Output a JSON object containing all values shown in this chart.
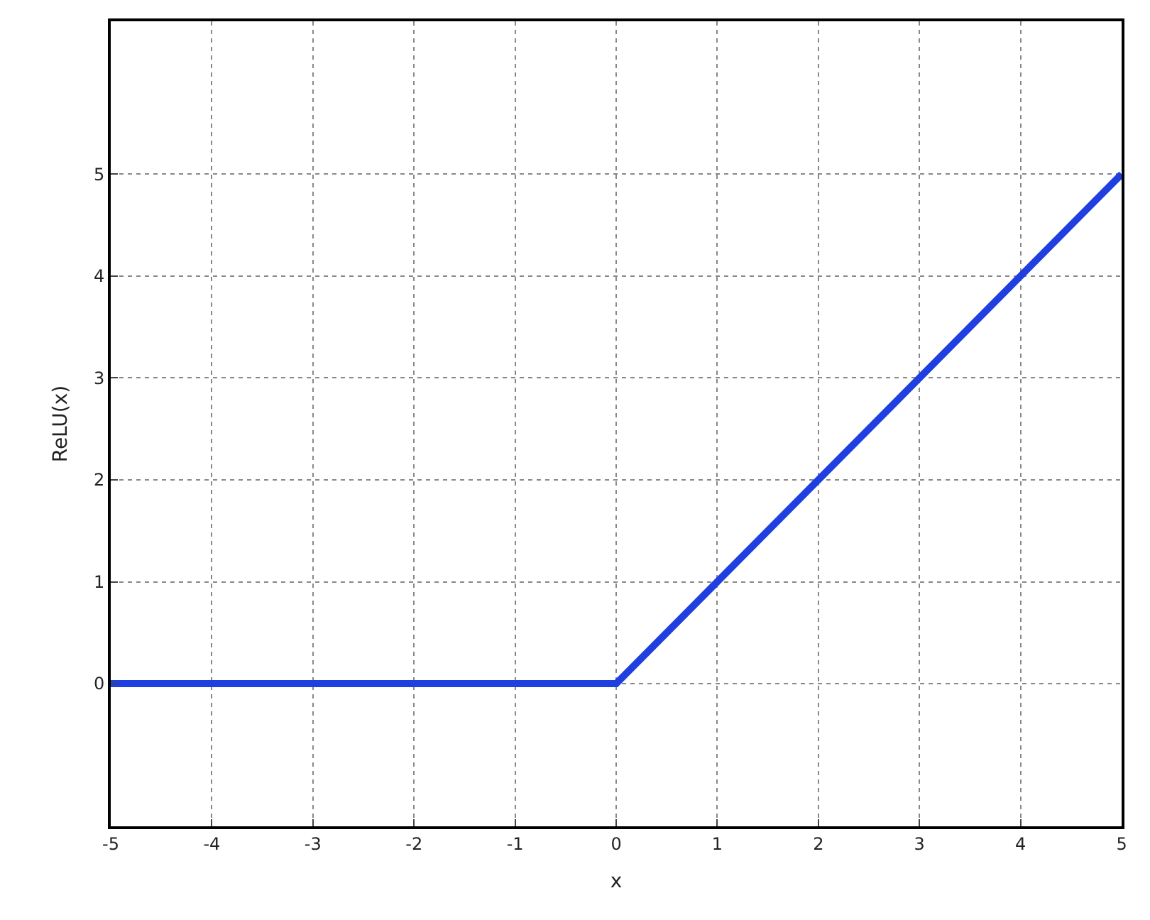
{
  "chart_data": {
    "type": "line",
    "xlabel": "x",
    "ylabel": "ReLU(x)",
    "x": [
      -5,
      0,
      5
    ],
    "series": [
      {
        "color": "#1f3fe0",
        "values": [
          0,
          0,
          5
        ]
      }
    ],
    "xlim": [
      -5,
      5
    ],
    "xticks": [
      -5,
      -4,
      -3,
      -2,
      -1,
      0,
      1,
      2,
      3,
      4,
      5
    ],
    "ylim": [
      -1.4,
      6.5
    ],
    "yticks": [
      0,
      1,
      2,
      3,
      4,
      5
    ],
    "grid": true,
    "line_style": "solid",
    "legend": false
  }
}
